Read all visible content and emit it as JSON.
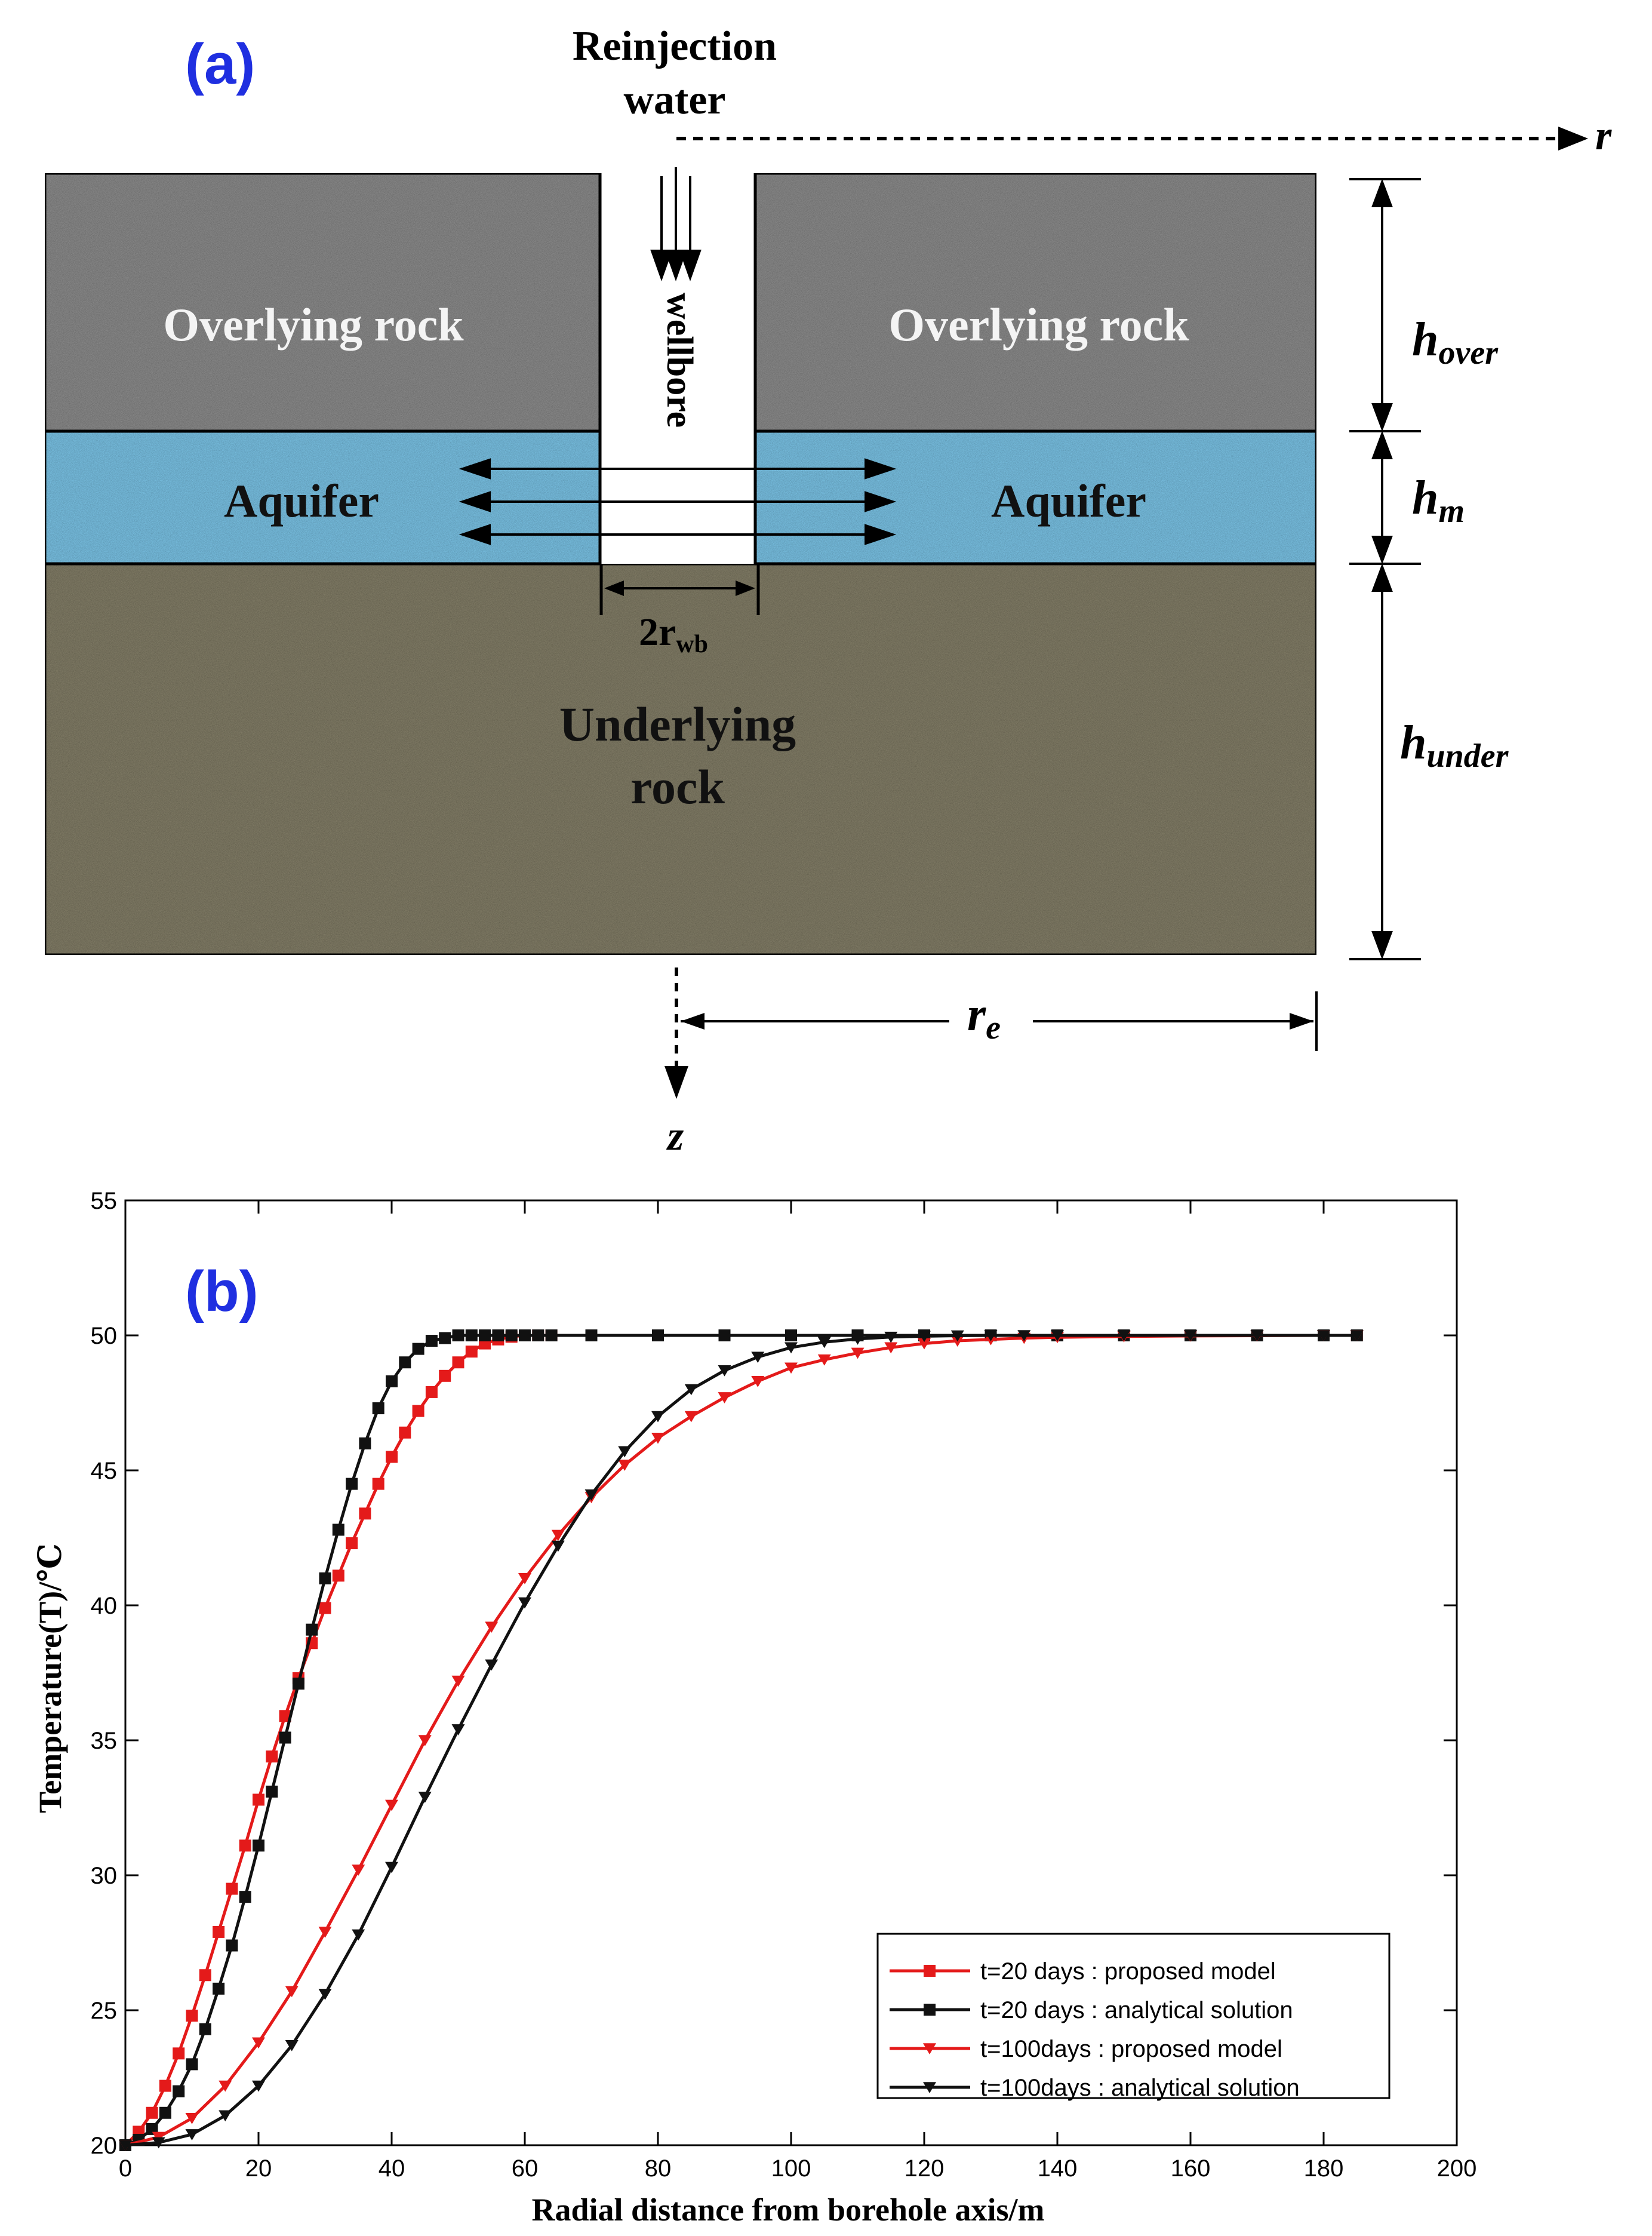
{
  "panel_a": {
    "label": "(a)",
    "reinjection_line1": "Reinjection",
    "reinjection_line2": "water",
    "axis_r": "r",
    "axis_z": "z",
    "wellbore": "wellbore",
    "overlying_left": "Overlying rock",
    "overlying_right": "Overlying rock",
    "aquifer_left": "Aquifer",
    "aquifer_right": "Aquifer",
    "underlying_line1": "Underlying",
    "underlying_line2": "rock",
    "rwb_main": "2r",
    "rwb_sub": "wb",
    "h_over_main": "h",
    "h_over_sub": "over",
    "h_m_main": "h",
    "h_m_sub": "m",
    "h_under_main": "h",
    "h_under_sub": "under",
    "re_main": "r",
    "re_sub": "e",
    "colors": {
      "overlying": "#8f8f8f",
      "aquifer": "#7ec7ea",
      "underlying": "#86816a",
      "label_blue": "#1f2fe0"
    }
  },
  "panel_b": {
    "label": "(b)"
  },
  "chart_data": {
    "type": "line",
    "xlabel": "Radial distance from borehole axis/m",
    "ylabel": "Temperature(T)/℃",
    "xlim": [
      0,
      200
    ],
    "ylim": [
      20,
      55
    ],
    "xticks": [
      "0",
      "20",
      "40",
      "60",
      "80",
      "100",
      "120",
      "140",
      "160",
      "180",
      "200"
    ],
    "yticks": [
      "20",
      "25",
      "30",
      "35",
      "40",
      "45",
      "50",
      "55"
    ],
    "grid": false,
    "legend_position": "bottom-right",
    "series": [
      {
        "name": "t=20 days  : proposed model",
        "color": "#e41a1a",
        "marker": "square",
        "x": [
          0,
          2,
          4,
          6,
          8,
          10,
          12,
          14,
          16,
          18,
          20,
          22,
          24,
          26,
          28,
          30,
          32,
          34,
          36,
          38,
          40,
          42,
          44,
          46,
          48,
          50,
          52,
          54,
          56,
          58,
          60,
          62,
          64,
          70,
          80,
          90,
          100,
          110,
          120,
          130,
          140,
          150,
          160,
          170,
          180,
          185
        ],
        "y": [
          20.0,
          20.5,
          21.2,
          22.2,
          23.4,
          24.8,
          26.3,
          27.9,
          29.5,
          31.1,
          32.8,
          34.4,
          35.9,
          37.3,
          38.6,
          39.9,
          41.1,
          42.3,
          43.4,
          44.5,
          45.5,
          46.4,
          47.2,
          47.9,
          48.5,
          49.0,
          49.4,
          49.7,
          49.85,
          49.95,
          50.0,
          50.0,
          50.0,
          50.0,
          50.0,
          50.0,
          50.0,
          50.0,
          50.0,
          50.0,
          50.0,
          50.0,
          50.0,
          50.0,
          50.0,
          50.0
        ]
      },
      {
        "name": "t=20 days  : analytical solution",
        "color": "#111111",
        "marker": "square",
        "x": [
          0,
          2,
          4,
          6,
          8,
          10,
          12,
          14,
          16,
          18,
          20,
          22,
          24,
          26,
          28,
          30,
          32,
          34,
          36,
          38,
          40,
          42,
          44,
          46,
          48,
          50,
          52,
          54,
          56,
          58,
          60,
          62,
          64,
          70,
          80,
          90,
          100,
          110,
          120,
          130,
          140,
          150,
          160,
          170,
          180,
          185
        ],
        "y": [
          20.0,
          20.2,
          20.6,
          21.2,
          22.0,
          23.0,
          24.3,
          25.8,
          27.4,
          29.2,
          31.1,
          33.1,
          35.1,
          37.1,
          39.1,
          41.0,
          42.8,
          44.5,
          46.0,
          47.3,
          48.3,
          49.0,
          49.5,
          49.8,
          49.9,
          50.0,
          50.0,
          50.0,
          50.0,
          50.0,
          50.0,
          50.0,
          50.0,
          50.0,
          50.0,
          50.0,
          50.0,
          50.0,
          50.0,
          50.0,
          50.0,
          50.0,
          50.0,
          50.0,
          50.0,
          50.0
        ]
      },
      {
        "name": "t=100days : proposed model",
        "color": "#e41a1a",
        "marker": "triangle-down",
        "x": [
          0,
          5,
          10,
          15,
          20,
          25,
          30,
          35,
          40,
          45,
          50,
          55,
          60,
          65,
          70,
          75,
          80,
          85,
          90,
          95,
          100,
          105,
          110,
          115,
          120,
          125,
          130,
          135,
          140,
          150,
          160,
          170,
          180,
          185
        ],
        "y": [
          20.0,
          20.3,
          21.0,
          22.2,
          23.8,
          25.7,
          27.9,
          30.2,
          32.6,
          35.0,
          37.2,
          39.2,
          41.0,
          42.6,
          44.0,
          45.2,
          46.2,
          47.0,
          47.7,
          48.3,
          48.8,
          49.1,
          49.35,
          49.55,
          49.7,
          49.8,
          49.85,
          49.9,
          49.93,
          49.96,
          49.98,
          49.99,
          50.0,
          50.0
        ]
      },
      {
        "name": "t=100days : analytical solution",
        "color": "#111111",
        "marker": "triangle-down",
        "x": [
          0,
          5,
          10,
          15,
          20,
          25,
          30,
          35,
          40,
          45,
          50,
          55,
          60,
          65,
          70,
          75,
          80,
          85,
          90,
          95,
          100,
          105,
          110,
          115,
          120,
          125,
          130,
          135,
          140,
          150,
          160,
          170,
          180,
          185
        ],
        "y": [
          20.0,
          20.1,
          20.4,
          21.1,
          22.2,
          23.7,
          25.6,
          27.8,
          30.3,
          32.9,
          35.4,
          37.8,
          40.1,
          42.2,
          44.1,
          45.7,
          47.0,
          48.0,
          48.7,
          49.2,
          49.55,
          49.75,
          49.87,
          49.94,
          49.97,
          49.99,
          50.0,
          50.0,
          50.0,
          50.0,
          50.0,
          50.0,
          50.0,
          50.0
        ]
      }
    ]
  }
}
